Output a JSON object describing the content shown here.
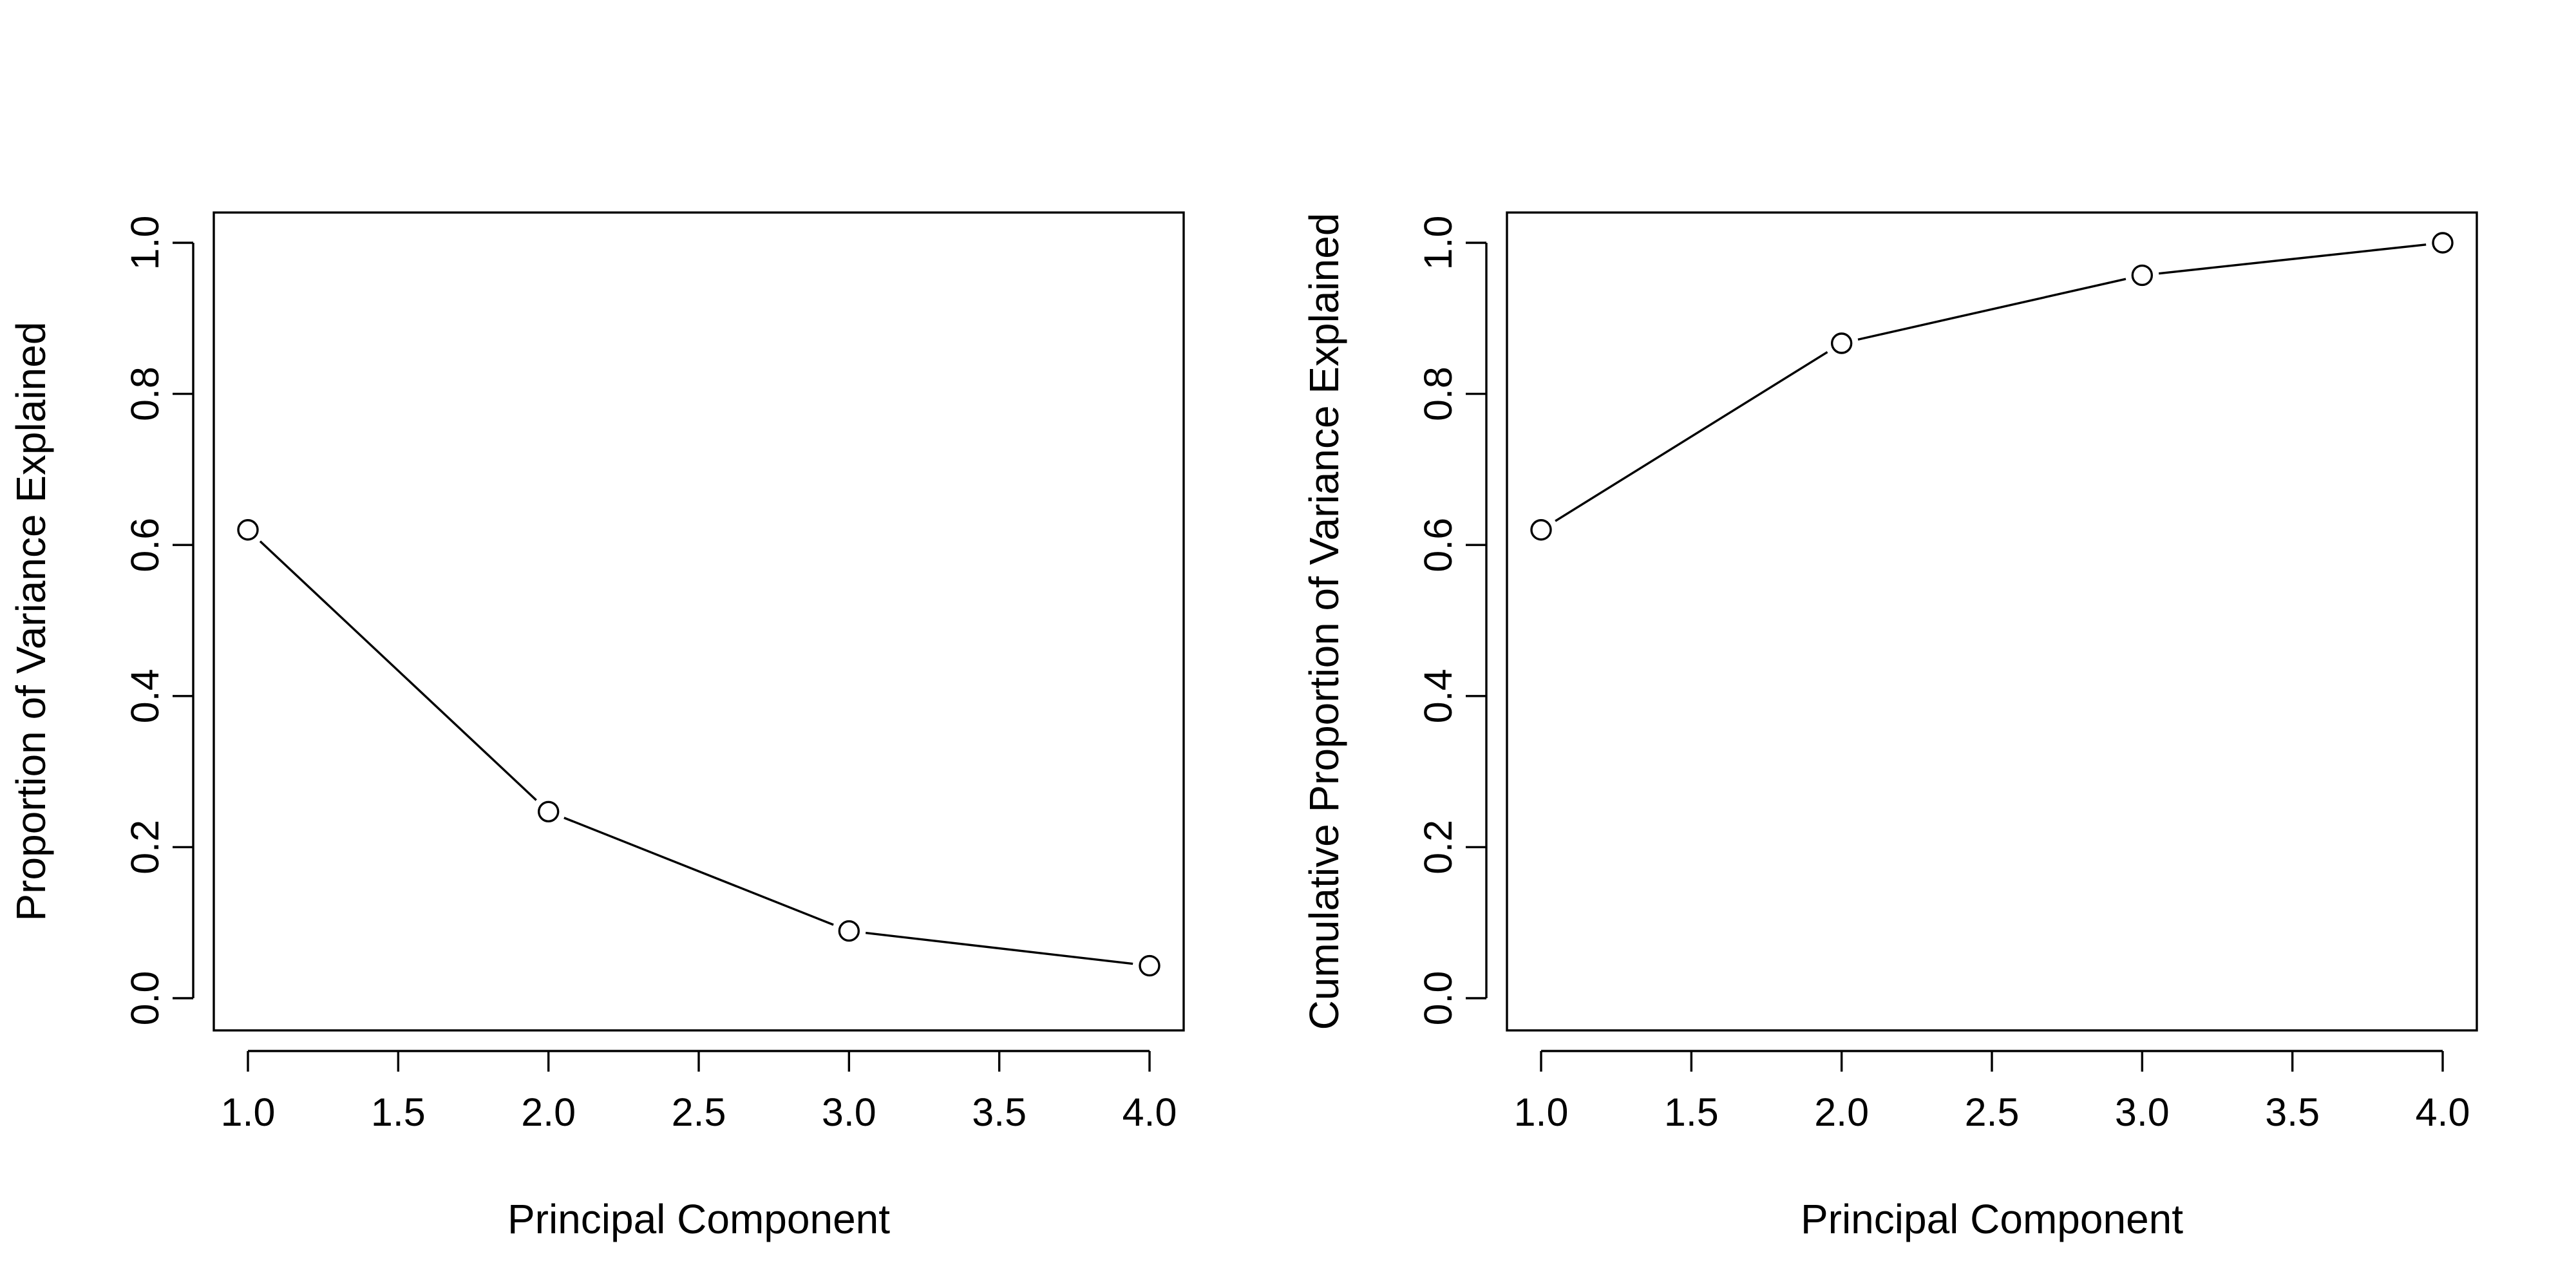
{
  "chart_data": [
    {
      "type": "line",
      "markers": "open-circle",
      "xlabel": "Principal Component",
      "ylabel": "Proportion of Variance Explained",
      "xlim": [
        1.0,
        4.0
      ],
      "ylim": [
        0.0,
        1.0
      ],
      "x_ticks": [
        "1.0",
        "1.5",
        "2.0",
        "2.5",
        "3.0",
        "3.5",
        "4.0"
      ],
      "y_ticks": [
        "0.0",
        "0.2",
        "0.4",
        "0.6",
        "0.8",
        "1.0"
      ],
      "grid": false,
      "x": [
        1,
        2,
        3,
        4
      ],
      "y": [
        0.62,
        0.247,
        0.089,
        0.043
      ]
    },
    {
      "type": "line",
      "markers": "open-circle",
      "xlabel": "Principal Component",
      "ylabel": "Cumulative Proportion of Variance Explained",
      "xlim": [
        1.0,
        4.0
      ],
      "ylim": [
        0.0,
        1.0
      ],
      "x_ticks": [
        "1.0",
        "1.5",
        "2.0",
        "2.5",
        "3.0",
        "3.5",
        "4.0"
      ],
      "y_ticks": [
        "0.0",
        "0.2",
        "0.4",
        "0.6",
        "0.8",
        "1.0"
      ],
      "grid": false,
      "x": [
        1,
        2,
        3,
        4
      ],
      "y": [
        0.62,
        0.867,
        0.957,
        1.0
      ]
    }
  ]
}
